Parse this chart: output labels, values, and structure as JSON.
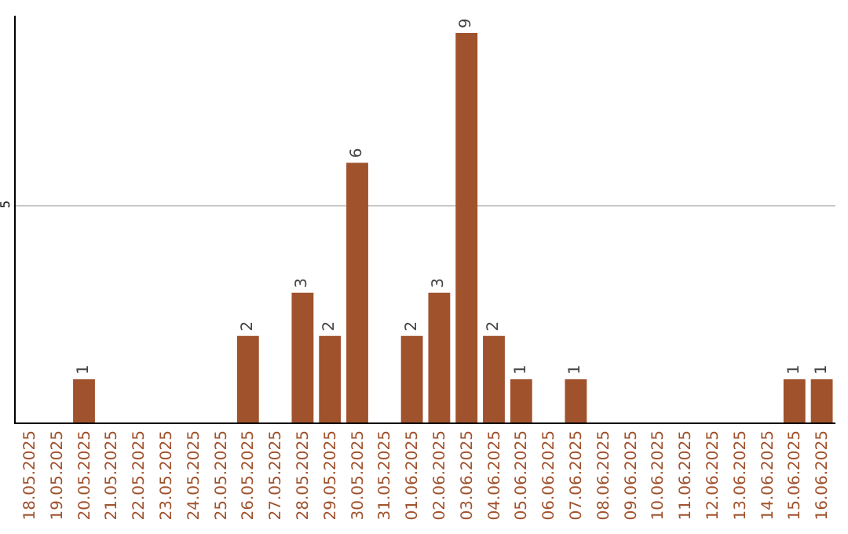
{
  "chart_data": {
    "type": "bar",
    "categories": [
      "18.05.2025",
      "19.05.2025",
      "20.05.2025",
      "21.05.2025",
      "22.05.2025",
      "23.05.2025",
      "24.05.2025",
      "25.05.2025",
      "26.05.2025",
      "27.05.2025",
      "28.05.2025",
      "29.05.2025",
      "30.05.2025",
      "31.05.2025",
      "01.06.2025",
      "02.06.2025",
      "03.06.2025",
      "04.06.2025",
      "05.06.2025",
      "06.06.2025",
      "07.06.2025",
      "08.06.2025",
      "09.06.2025",
      "10.06.2025",
      "11.06.2025",
      "12.06.2025",
      "13.06.2025",
      "14.06.2025",
      "15.06.2025",
      "16.06.2025"
    ],
    "values": [
      0,
      0,
      1,
      0,
      0,
      0,
      0,
      0,
      2,
      0,
      3,
      2,
      6,
      0,
      2,
      3,
      9,
      2,
      1,
      0,
      1,
      0,
      0,
      0,
      0,
      0,
      0,
      0,
      1,
      1
    ],
    "color": "#a0522d",
    "value_labels": [
      null,
      null,
      "1",
      null,
      null,
      null,
      null,
      null,
      "2",
      null,
      "3",
      "2",
      "6",
      null,
      "2",
      "3",
      "9",
      "2",
      "1",
      null,
      "1",
      null,
      null,
      null,
      null,
      null,
      null,
      null,
      "1",
      "1"
    ],
    "ylim": [
      0,
      9.4
    ],
    "yticks": [
      5
    ],
    "grid": "y"
  }
}
